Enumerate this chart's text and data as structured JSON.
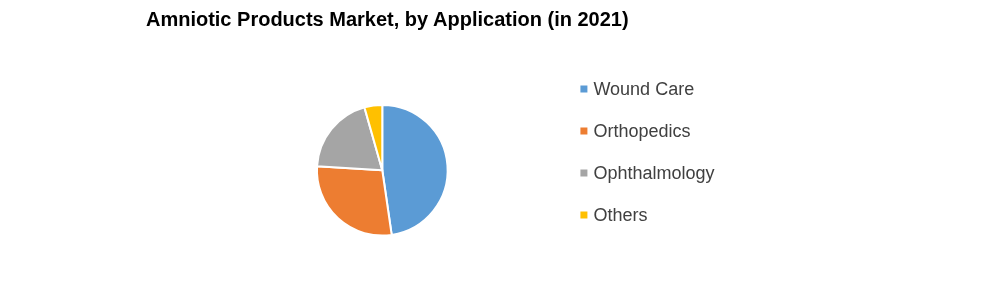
{
  "chart_data": {
    "type": "pie",
    "title": "Amniotic Products Market, by Application (in 2021)",
    "categories": [
      "Wound Care",
      "Orthopedics",
      "Ophthalmology",
      "Others"
    ],
    "values": [
      47.7,
      28.3,
      19.6,
      4.4
    ],
    "colors": [
      "#5b9bd5",
      "#ed7d31",
      "#a5a5a5",
      "#ffc000"
    ],
    "legend": "right"
  }
}
